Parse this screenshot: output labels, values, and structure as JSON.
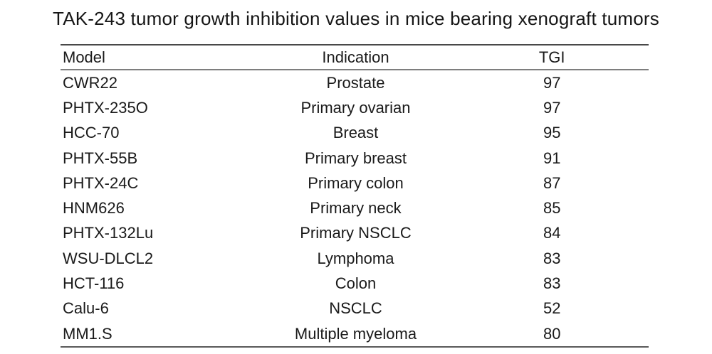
{
  "title": "TAK-243 tumor growth inhibition values in mice bearing xenograft tumors",
  "colors": {
    "background": "#ffffff",
    "text": "#1a1a1a",
    "top_rule": "#484848",
    "header_rule": "#7e7e7e",
    "bottom_rule": "#5a5a5a"
  },
  "chart_data": {
    "type": "table",
    "title": "TAK-243 tumor growth inhibition values in mice bearing xenograft tumors",
    "columns": [
      "Model",
      "Indication",
      "TGI"
    ],
    "rows": [
      [
        "CWR22",
        "Prostate",
        97
      ],
      [
        "PHTX-235O",
        "Primary ovarian",
        97
      ],
      [
        "HCC-70",
        "Breast",
        95
      ],
      [
        "PHTX-55B",
        "Primary breast",
        91
      ],
      [
        "PHTX-24C",
        "Primary colon",
        87
      ],
      [
        "HNM626",
        "Primary neck",
        85
      ],
      [
        "PHTX-132Lu",
        "Primary NSCLC",
        84
      ],
      [
        "WSU-DLCL2",
        "Lymphoma",
        83
      ],
      [
        "HCT-116",
        "Colon",
        83
      ],
      [
        "Calu-6",
        "NSCLC",
        52
      ],
      [
        "MM1.S",
        "Multiple myeloma",
        80
      ]
    ],
    "layout": {
      "header_rules": true,
      "row_lines": false,
      "model_align": "left",
      "indication_align": "center",
      "tgi_align": "center"
    }
  }
}
